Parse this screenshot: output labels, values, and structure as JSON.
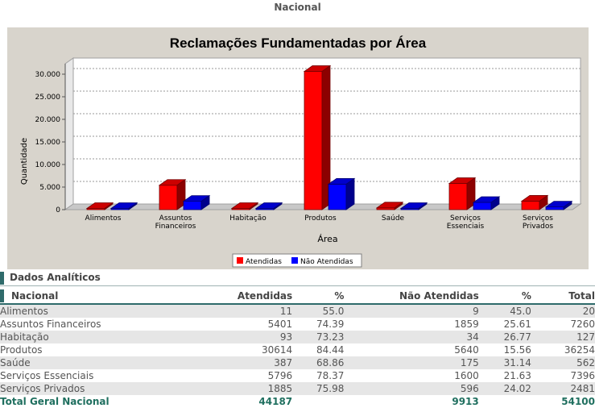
{
  "page": {
    "heading": "Nacional"
  },
  "chart_data": {
    "type": "bar",
    "title": "Reclamações Fundamentadas por Área",
    "xlabel": "Área",
    "ylabel": "Quantidade",
    "categories": [
      "Alimentos",
      "Assuntos Financeiros",
      "Habitação",
      "Produtos",
      "Saúde",
      "Serviços Essenciais",
      "Serviços Privados"
    ],
    "series": [
      {
        "name": "Atendidas",
        "color": "#ff0000",
        "values": [
          11,
          5401,
          93,
          30614,
          387,
          5796,
          1885
        ]
      },
      {
        "name": "Não Atendidas",
        "color": "#0000ff",
        "values": [
          9,
          1859,
          34,
          5640,
          175,
          1600,
          596
        ]
      }
    ],
    "ylim": [
      0,
      30000
    ],
    "yticks": [
      "0",
      "5.000",
      "10.000",
      "15.000",
      "20.000",
      "25.000",
      "30.000"
    ],
    "grid": true,
    "legend": "bottom-center"
  },
  "table": {
    "section_title": "Dados Analíticos",
    "headers": [
      "Nacional",
      "Atendidas",
      "%",
      "Não Atendidas",
      "%",
      "Total"
    ],
    "rows": [
      [
        "Alimentos",
        "11",
        "55.0",
        "9",
        "45.0",
        "20"
      ],
      [
        "Assuntos Financeiros",
        "5401",
        "74.39",
        "1859",
        "25.61",
        "7260"
      ],
      [
        "Habitação",
        "93",
        "73.23",
        "34",
        "26.77",
        "127"
      ],
      [
        "Produtos",
        "30614",
        "84.44",
        "5640",
        "15.56",
        "36254"
      ],
      [
        "Saúde",
        "387",
        "68.86",
        "175",
        "31.14",
        "562"
      ],
      [
        "Serviços Essenciais",
        "5796",
        "78.37",
        "1600",
        "21.63",
        "7396"
      ],
      [
        "Serviços Privados",
        "1885",
        "75.98",
        "596",
        "24.02",
        "2481"
      ]
    ],
    "total": [
      "Total Geral Nacional",
      "44187",
      "",
      "9913",
      "",
      "54100"
    ]
  }
}
